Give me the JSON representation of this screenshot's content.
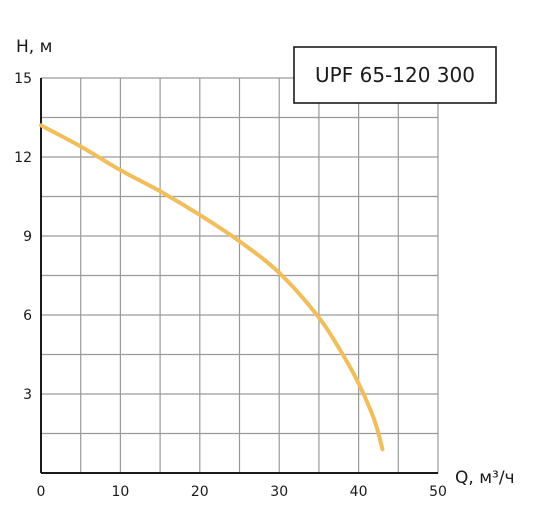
{
  "chart_data": {
    "type": "line",
    "title": "UPF 65-120 300",
    "xlabel": "Q, м³/ч",
    "ylabel": "H, м",
    "xlim": [
      0,
      50
    ],
    "ylim": [
      0,
      15
    ],
    "x_ticks": [
      0,
      10,
      20,
      30,
      40,
      50
    ],
    "y_ticks": [
      3,
      6,
      9,
      12,
      15
    ],
    "x_grid_step": 5,
    "y_grid_step": 1.5,
    "grid": true,
    "series": [
      {
        "color": "#F2BE5C",
        "x": [
          0,
          5,
          10,
          15,
          20,
          25,
          30,
          35,
          38,
          40,
          42,
          43
        ],
        "y": [
          13.2,
          12.4,
          11.5,
          10.7,
          9.8,
          8.8,
          7.6,
          5.9,
          4.5,
          3.4,
          2.0,
          0.9
        ]
      }
    ]
  }
}
